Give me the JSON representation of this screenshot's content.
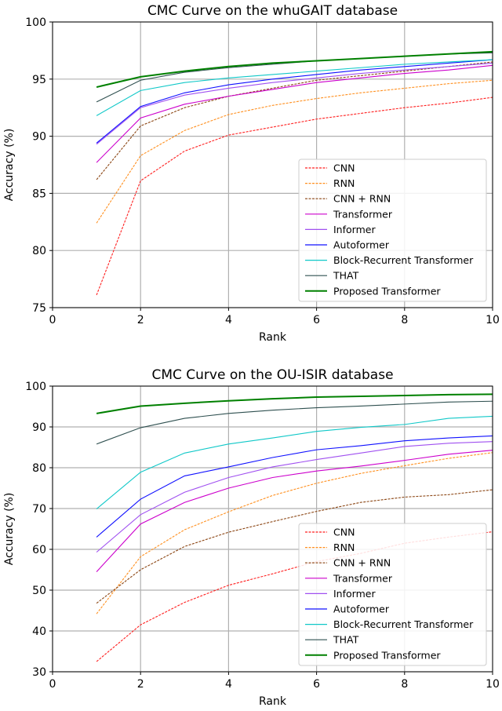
{
  "chart_data": [
    {
      "type": "line",
      "title": "CMC Curve on the whuGAIT database",
      "xlabel": "Rank",
      "ylabel": "Accuracy (%)",
      "xlim": [
        0,
        10
      ],
      "ylim": [
        75,
        100
      ],
      "xticks": [
        0,
        2,
        4,
        6,
        8,
        10
      ],
      "yticks": [
        75,
        80,
        85,
        90,
        95,
        100
      ],
      "grid": true,
      "legend_position": "bottom-right",
      "x": [
        1,
        2,
        3,
        4,
        5,
        6,
        7,
        8,
        9,
        10
      ],
      "series": [
        {
          "name": "CNN",
          "color": "#ff2020",
          "dash": true,
          "values": [
            76.1,
            86.1,
            88.7,
            90.1,
            90.8,
            91.5,
            92.0,
            92.5,
            92.9,
            93.4
          ]
        },
        {
          "name": "RNN",
          "color": "#ff9020",
          "dash": true,
          "values": [
            82.4,
            88.3,
            90.5,
            91.9,
            92.7,
            93.3,
            93.8,
            94.2,
            94.6,
            94.9
          ]
        },
        {
          "name": "CNN + RNN",
          "color": "#8b4513",
          "dash": true,
          "values": [
            86.2,
            90.9,
            92.5,
            93.5,
            94.2,
            94.9,
            95.3,
            95.7,
            96.1,
            96.5
          ]
        },
        {
          "name": "Transformer",
          "color": "#cc00cc",
          "dash": false,
          "values": [
            87.7,
            91.6,
            92.8,
            93.5,
            94.1,
            94.7,
            95.1,
            95.5,
            95.8,
            96.2
          ]
        },
        {
          "name": "Informer",
          "color": "#a050f0",
          "dash": false,
          "values": [
            89.3,
            92.5,
            93.6,
            94.2,
            94.7,
            95.1,
            95.5,
            95.8,
            96.1,
            96.4
          ]
        },
        {
          "name": "Autoformer",
          "color": "#1010ff",
          "dash": false,
          "values": [
            89.4,
            92.6,
            93.8,
            94.5,
            95.0,
            95.4,
            95.8,
            96.1,
            96.4,
            96.7
          ]
        },
        {
          "name": "Block-Recurrent Transformer",
          "color": "#10c8c8",
          "dash": false,
          "values": [
            91.8,
            94.0,
            94.7,
            95.1,
            95.4,
            95.7,
            96.0,
            96.3,
            96.5,
            96.7
          ]
        },
        {
          "name": "THAT",
          "color": "#2f5050",
          "dash": false,
          "values": [
            93.0,
            94.9,
            95.6,
            96.0,
            96.3,
            96.6,
            96.8,
            97.0,
            97.2,
            97.3
          ]
        },
        {
          "name": "Proposed Transformer",
          "color": "#008000",
          "dash": false,
          "thick": true,
          "values": [
            94.3,
            95.2,
            95.7,
            96.1,
            96.4,
            96.6,
            96.8,
            97.0,
            97.2,
            97.4
          ]
        }
      ]
    },
    {
      "type": "line",
      "title": "CMC Curve on the OU-ISIR database",
      "xlabel": "Rank",
      "ylabel": "Accuracy (%)",
      "xlim": [
        0,
        10
      ],
      "ylim": [
        30,
        100
      ],
      "xticks": [
        0,
        2,
        4,
        6,
        8,
        10
      ],
      "yticks": [
        30,
        40,
        50,
        60,
        70,
        80,
        90,
        100
      ],
      "grid": true,
      "legend_position": "bottom-right",
      "x": [
        1,
        2,
        3,
        4,
        5,
        6,
        7,
        8,
        9,
        10
      ],
      "series": [
        {
          "name": "CNN",
          "color": "#ff2020",
          "dash": true,
          "values": [
            32.5,
            41.5,
            47.0,
            51.2,
            54.0,
            57.0,
            59.0,
            61.5,
            63.0,
            64.3
          ]
        },
        {
          "name": "RNN",
          "color": "#ff9020",
          "dash": true,
          "values": [
            44.2,
            58.2,
            64.8,
            69.2,
            73.2,
            76.2,
            78.6,
            80.5,
            82.3,
            83.7
          ]
        },
        {
          "name": "CNN + RNN",
          "color": "#8b4513",
          "dash": true,
          "values": [
            46.8,
            55.0,
            60.7,
            64.2,
            66.8,
            69.3,
            71.5,
            72.8,
            73.4,
            74.6
          ]
        },
        {
          "name": "Transformer",
          "color": "#cc00cc",
          "dash": false,
          "values": [
            54.5,
            66.2,
            71.5,
            75.0,
            77.6,
            79.2,
            80.4,
            81.8,
            83.3,
            84.3
          ]
        },
        {
          "name": "Informer",
          "color": "#a050f0",
          "dash": false,
          "values": [
            59.3,
            68.5,
            74.0,
            77.6,
            80.2,
            82.0,
            83.6,
            85.2,
            86.0,
            86.4
          ]
        },
        {
          "name": "Autoformer",
          "color": "#1010ff",
          "dash": false,
          "values": [
            63.0,
            72.3,
            78.0,
            80.2,
            82.5,
            84.4,
            85.4,
            86.6,
            87.3,
            87.8
          ]
        },
        {
          "name": "Block-Recurrent Transformer",
          "color": "#10c8c8",
          "dash": false,
          "values": [
            69.9,
            78.9,
            83.6,
            85.8,
            87.3,
            88.9,
            89.9,
            90.6,
            92.1,
            92.6
          ]
        },
        {
          "name": "THAT",
          "color": "#2f5050",
          "dash": false,
          "values": [
            85.8,
            89.8,
            92.1,
            93.3,
            94.1,
            94.7,
            95.1,
            95.6,
            96.1,
            96.3
          ]
        },
        {
          "name": "Proposed Transformer",
          "color": "#008000",
          "dash": false,
          "thick": true,
          "values": [
            93.3,
            95.1,
            95.8,
            96.4,
            96.9,
            97.3,
            97.5,
            97.7,
            97.9,
            98.0
          ]
        }
      ]
    }
  ]
}
